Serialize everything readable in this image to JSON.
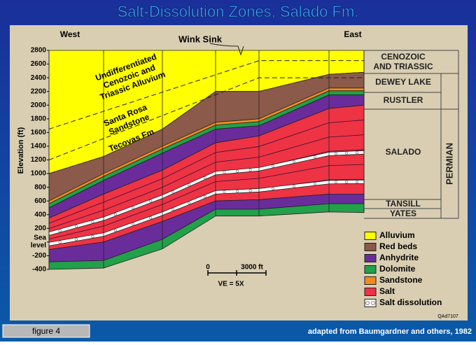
{
  "title": "Salt-Dissolution Zones, Salado Fm.",
  "section": {
    "west": "West",
    "east": "East",
    "feature": "Wink Sink",
    "alluvium_label": [
      "Undifferentiated",
      "Cenozoic and",
      "Triassic Alluvium"
    ],
    "sandstone_label": [
      "Santa Rosa",
      "Sandstone"
    ],
    "tecovas_label": "Tecovas Fm"
  },
  "y_axis": {
    "label": "Elevation (ft)",
    "ticks": [
      2800,
      2600,
      2400,
      2200,
      2000,
      1800,
      1600,
      1400,
      1200,
      1000,
      800,
      600,
      400,
      200,
      -200,
      -400
    ],
    "sea_level": {
      "value": 0,
      "lines": [
        "Sea",
        "level"
      ]
    }
  },
  "units": {
    "cenozoic": [
      "CENOZOIC",
      "AND TRIASSIC"
    ],
    "dewey": "DEWEY LAKE",
    "rustler": "RUSTLER",
    "salado": "SALADO",
    "tansill": "TANSILL",
    "yates": "YATES",
    "permian": "PERMIAN"
  },
  "scale": {
    "zero": "0",
    "length": "3000 ft",
    "ve": "VE = 5X"
  },
  "legend": [
    "Alluvium",
    "Red beds",
    "Anhydrite",
    "Dolomite",
    "Sandstone",
    "Salt",
    "Salt dissolution"
  ],
  "code": "QAd7107",
  "footer": {
    "figure": "figure 4",
    "credit": "adapted from Baumgardner and others, 1982"
  }
}
